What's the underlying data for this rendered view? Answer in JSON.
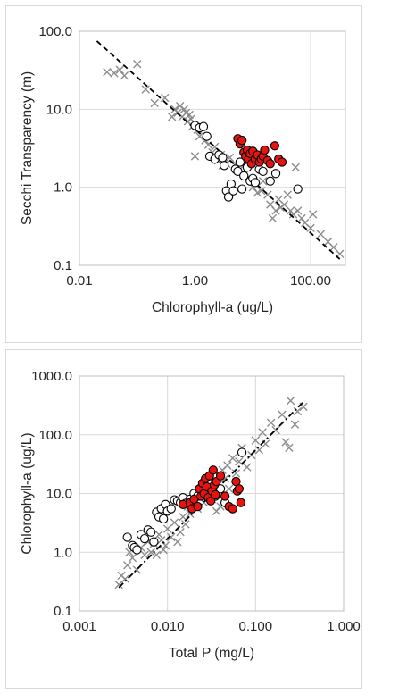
{
  "chart_data": [
    {
      "type": "scatter",
      "xlabel": "Chlorophyll-a (ug/L)",
      "ylabel": "Secchi Transparency (m)",
      "xscale": "log",
      "yscale": "log",
      "xlim": [
        0.01,
        400
      ],
      "ylim": [
        0.1,
        100
      ],
      "xticks": [
        "0.01",
        "1.00",
        "100.00"
      ],
      "xtick_values": [
        0.01,
        1,
        100
      ],
      "yticks": [
        "0.1",
        "1.0",
        "10.0",
        "100.0"
      ],
      "ytick_values": [
        0.1,
        1,
        10,
        100
      ],
      "grid": true,
      "trendline": {
        "style": "dashed",
        "color": "#000000",
        "points": [
          [
            0.02,
            75
          ],
          [
            320,
            0.12
          ]
        ]
      },
      "series": [
        {
          "marker": "x",
          "color": "#8c8c8c",
          "points": [
            [
              0.03,
              30
            ],
            [
              0.04,
              29
            ],
            [
              0.05,
              32
            ],
            [
              0.06,
              27
            ],
            [
              0.1,
              38
            ],
            [
              0.14,
              18
            ],
            [
              0.2,
              12
            ],
            [
              0.3,
              14
            ],
            [
              0.4,
              8
            ],
            [
              0.45,
              10
            ],
            [
              0.5,
              9
            ],
            [
              0.55,
              11
            ],
            [
              0.6,
              8
            ],
            [
              0.65,
              10
            ],
            [
              0.7,
              9
            ],
            [
              0.75,
              7
            ],
            [
              0.8,
              8.5
            ],
            [
              0.85,
              7.5
            ],
            [
              0.9,
              6
            ],
            [
              1.0,
              2.5
            ],
            [
              1.1,
              5.5
            ],
            [
              1.2,
              4.5
            ],
            [
              1.3,
              6
            ],
            [
              1.5,
              4
            ],
            [
              1.7,
              3.5
            ],
            [
              2.0,
              2.8
            ],
            [
              2.2,
              3.3
            ],
            [
              2.5,
              2.2
            ],
            [
              2.8,
              2.6
            ],
            [
              3.0,
              1.9
            ],
            [
              3.5,
              2.0
            ],
            [
              4.0,
              2.4
            ],
            [
              5.0,
              2.0
            ],
            [
              6.0,
              1.7
            ],
            [
              7,
              1.5
            ],
            [
              9,
              1.3
            ],
            [
              10,
              1.0
            ],
            [
              12,
              0.85
            ],
            [
              14,
              0.9
            ],
            [
              15,
              1.2
            ],
            [
              18,
              0.8
            ],
            [
              20,
              0.6
            ],
            [
              22,
              0.4
            ],
            [
              25,
              0.5
            ],
            [
              28,
              0.7
            ],
            [
              30,
              0.55
            ],
            [
              35,
              0.6
            ],
            [
              40,
              0.8
            ],
            [
              45,
              0.5
            ],
            [
              50,
              0.45
            ],
            [
              55,
              1.8
            ],
            [
              60,
              0.5
            ],
            [
              70,
              0.4
            ],
            [
              80,
              0.35
            ],
            [
              100,
              0.3
            ],
            [
              110,
              0.45
            ],
            [
              150,
              0.25
            ],
            [
              200,
              0.2
            ],
            [
              250,
              0.17
            ],
            [
              320,
              0.14
            ]
          ]
        },
        {
          "marker": "circle",
          "color": "#ffffff",
          "edgecolor": "#000000",
          "points": [
            [
              1.0,
              6.2
            ],
            [
              1.2,
              5.8
            ],
            [
              1.4,
              6.0
            ],
            [
              1.6,
              4.5
            ],
            [
              1.8,
              2.5
            ],
            [
              2.2,
              2.3
            ],
            [
              2.6,
              2.6
            ],
            [
              3.0,
              2.4
            ],
            [
              3.2,
              1.9
            ],
            [
              3.5,
              0.9
            ],
            [
              3.8,
              0.75
            ],
            [
              4.2,
              1.1
            ],
            [
              4.6,
              0.9
            ],
            [
              5.0,
              1.7
            ],
            [
              5.5,
              1.6
            ],
            [
              6.0,
              2.1
            ],
            [
              6.5,
              0.95
            ],
            [
              7,
              1.4
            ],
            [
              8,
              1.8
            ],
            [
              9,
              1.2
            ],
            [
              10,
              1.3
            ],
            [
              11,
              1.15
            ],
            [
              12,
              2.2
            ],
            [
              13,
              1.7
            ],
            [
              15,
              1.6
            ],
            [
              20,
              1.2
            ],
            [
              25,
              1.5
            ],
            [
              60,
              0.95
            ]
          ]
        },
        {
          "marker": "circle",
          "color": "#e8120f",
          "edgecolor": "#000000",
          "points": [
            [
              5.5,
              4.2
            ],
            [
              6,
              3.6
            ],
            [
              6.5,
              4.0
            ],
            [
              7,
              2.8
            ],
            [
              7.5,
              2.5
            ],
            [
              8,
              3.0
            ],
            [
              8.5,
              2.3
            ],
            [
              9,
              2.7
            ],
            [
              9.5,
              2.0
            ],
            [
              10,
              2.9
            ],
            [
              11,
              2.3
            ],
            [
              12,
              2.6
            ],
            [
              13,
              2.1
            ],
            [
              14,
              2.3
            ],
            [
              15,
              2.5
            ],
            [
              16,
              3.0
            ],
            [
              18,
              2.2
            ],
            [
              20,
              2.0
            ],
            [
              24,
              3.4
            ],
            [
              28,
              2.3
            ],
            [
              32,
              2.1
            ]
          ]
        }
      ]
    },
    {
      "type": "scatter",
      "xlabel": "Total P (mg/L)",
      "ylabel": "Chlorophyll-a (ug/L)",
      "xscale": "log",
      "yscale": "log",
      "xlim": [
        0.001,
        1
      ],
      "ylim": [
        0.1,
        1000
      ],
      "xticks": [
        "0.001",
        "0.010",
        "0.100",
        "1.000"
      ],
      "xtick_values": [
        0.001,
        0.01,
        0.1,
        1
      ],
      "yticks": [
        "0.1",
        "1.0",
        "10.0",
        "100.0",
        "1000.0"
      ],
      "ytick_values": [
        0.1,
        1,
        10,
        100,
        1000
      ],
      "grid": true,
      "trendline": {
        "style": "dash-dot",
        "color": "#000000",
        "points": [
          [
            0.0028,
            0.25
          ],
          [
            0.36,
            380
          ]
        ]
      },
      "series": [
        {
          "marker": "x",
          "color": "#8c8c8c",
          "points": [
            [
              0.0028,
              0.28
            ],
            [
              0.003,
              0.4
            ],
            [
              0.0033,
              0.35
            ],
            [
              0.0035,
              0.6
            ],
            [
              0.0037,
              1.0
            ],
            [
              0.004,
              0.8
            ],
            [
              0.0045,
              0.5
            ],
            [
              0.005,
              1.2
            ],
            [
              0.0055,
              0.9
            ],
            [
              0.006,
              1.5
            ],
            [
              0.0065,
              1.0
            ],
            [
              0.007,
              1.4
            ],
            [
              0.0075,
              0.9
            ],
            [
              0.008,
              2.0
            ],
            [
              0.0085,
              1.6
            ],
            [
              0.009,
              1.1
            ],
            [
              0.0095,
              1.3
            ],
            [
              0.01,
              2.5
            ],
            [
              0.011,
              1.8
            ],
            [
              0.012,
              3.2
            ],
            [
              0.013,
              1.5
            ],
            [
              0.014,
              2.2
            ],
            [
              0.015,
              4.0
            ],
            [
              0.016,
              3.0
            ],
            [
              0.017,
              6.0
            ],
            [
              0.018,
              4.5
            ],
            [
              0.02,
              7.5
            ],
            [
              0.022,
              5.5
            ],
            [
              0.024,
              9.0
            ],
            [
              0.026,
              7.0
            ],
            [
              0.028,
              12
            ],
            [
              0.03,
              10
            ],
            [
              0.032,
              8.0
            ],
            [
              0.034,
              15
            ],
            [
              0.036,
              5.0
            ],
            [
              0.038,
              20
            ],
            [
              0.04,
              6.0
            ],
            [
              0.042,
              25
            ],
            [
              0.045,
              18
            ],
            [
              0.048,
              30
            ],
            [
              0.05,
              12
            ],
            [
              0.055,
              40
            ],
            [
              0.06,
              22
            ],
            [
              0.065,
              35
            ],
            [
              0.07,
              60
            ],
            [
              0.08,
              28
            ],
            [
              0.09,
              45
            ],
            [
              0.1,
              80
            ],
            [
              0.11,
              55
            ],
            [
              0.12,
              110
            ],
            [
              0.13,
              70
            ],
            [
              0.15,
              160
            ],
            [
              0.17,
              120
            ],
            [
              0.2,
              220
            ],
            [
              0.22,
              75
            ],
            [
              0.25,
              380
            ],
            [
              0.28,
              150
            ],
            [
              0.3,
              250
            ],
            [
              0.35,
              300
            ],
            [
              0.24,
              60
            ]
          ]
        },
        {
          "marker": "circle",
          "color": "#ffffff",
          "edgecolor": "#000000",
          "points": [
            [
              0.0035,
              1.8
            ],
            [
              0.004,
              1.3
            ],
            [
              0.0042,
              1.2
            ],
            [
              0.0045,
              1.1
            ],
            [
              0.005,
              2.0
            ],
            [
              0.0055,
              1.7
            ],
            [
              0.006,
              2.4
            ],
            [
              0.0065,
              2.2
            ],
            [
              0.007,
              1.5
            ],
            [
              0.0075,
              4.8
            ],
            [
              0.008,
              4.0
            ],
            [
              0.0085,
              5.5
            ],
            [
              0.009,
              3.7
            ],
            [
              0.0095,
              6.5
            ],
            [
              0.01,
              5.0
            ],
            [
              0.011,
              5.5
            ],
            [
              0.012,
              7.8
            ],
            [
              0.013,
              7.5
            ],
            [
              0.014,
              7.0
            ],
            [
              0.015,
              8.5
            ],
            [
              0.016,
              6.8
            ],
            [
              0.018,
              8.0
            ],
            [
              0.02,
              10
            ],
            [
              0.022,
              9.0
            ],
            [
              0.025,
              11
            ],
            [
              0.03,
              10
            ],
            [
              0.035,
              9.0
            ],
            [
              0.04,
              12
            ],
            [
              0.045,
              7.0
            ],
            [
              0.07,
              50
            ]
          ]
        },
        {
          "marker": "circle",
          "color": "#e8120f",
          "edgecolor": "#000000",
          "points": [
            [
              0.015,
              6.5
            ],
            [
              0.018,
              7.0
            ],
            [
              0.019,
              5.5
            ],
            [
              0.02,
              8.0
            ],
            [
              0.022,
              6.0
            ],
            [
              0.023,
              12
            ],
            [
              0.024,
              9.0
            ],
            [
              0.025,
              15
            ],
            [
              0.026,
              10
            ],
            [
              0.027,
              18
            ],
            [
              0.028,
              13
            ],
            [
              0.029,
              8.5
            ],
            [
              0.03,
              20
            ],
            [
              0.031,
              7.5
            ],
            [
              0.032,
              11
            ],
            [
              0.033,
              25
            ],
            [
              0.034,
              14
            ],
            [
              0.035,
              9.5
            ],
            [
              0.036,
              16
            ],
            [
              0.04,
              20
            ],
            [
              0.045,
              9.0
            ],
            [
              0.05,
              6.0
            ],
            [
              0.055,
              5.5
            ],
            [
              0.06,
              16
            ],
            [
              0.062,
              11
            ],
            [
              0.065,
              12
            ],
            [
              0.068,
              7.0
            ]
          ]
        }
      ]
    }
  ]
}
